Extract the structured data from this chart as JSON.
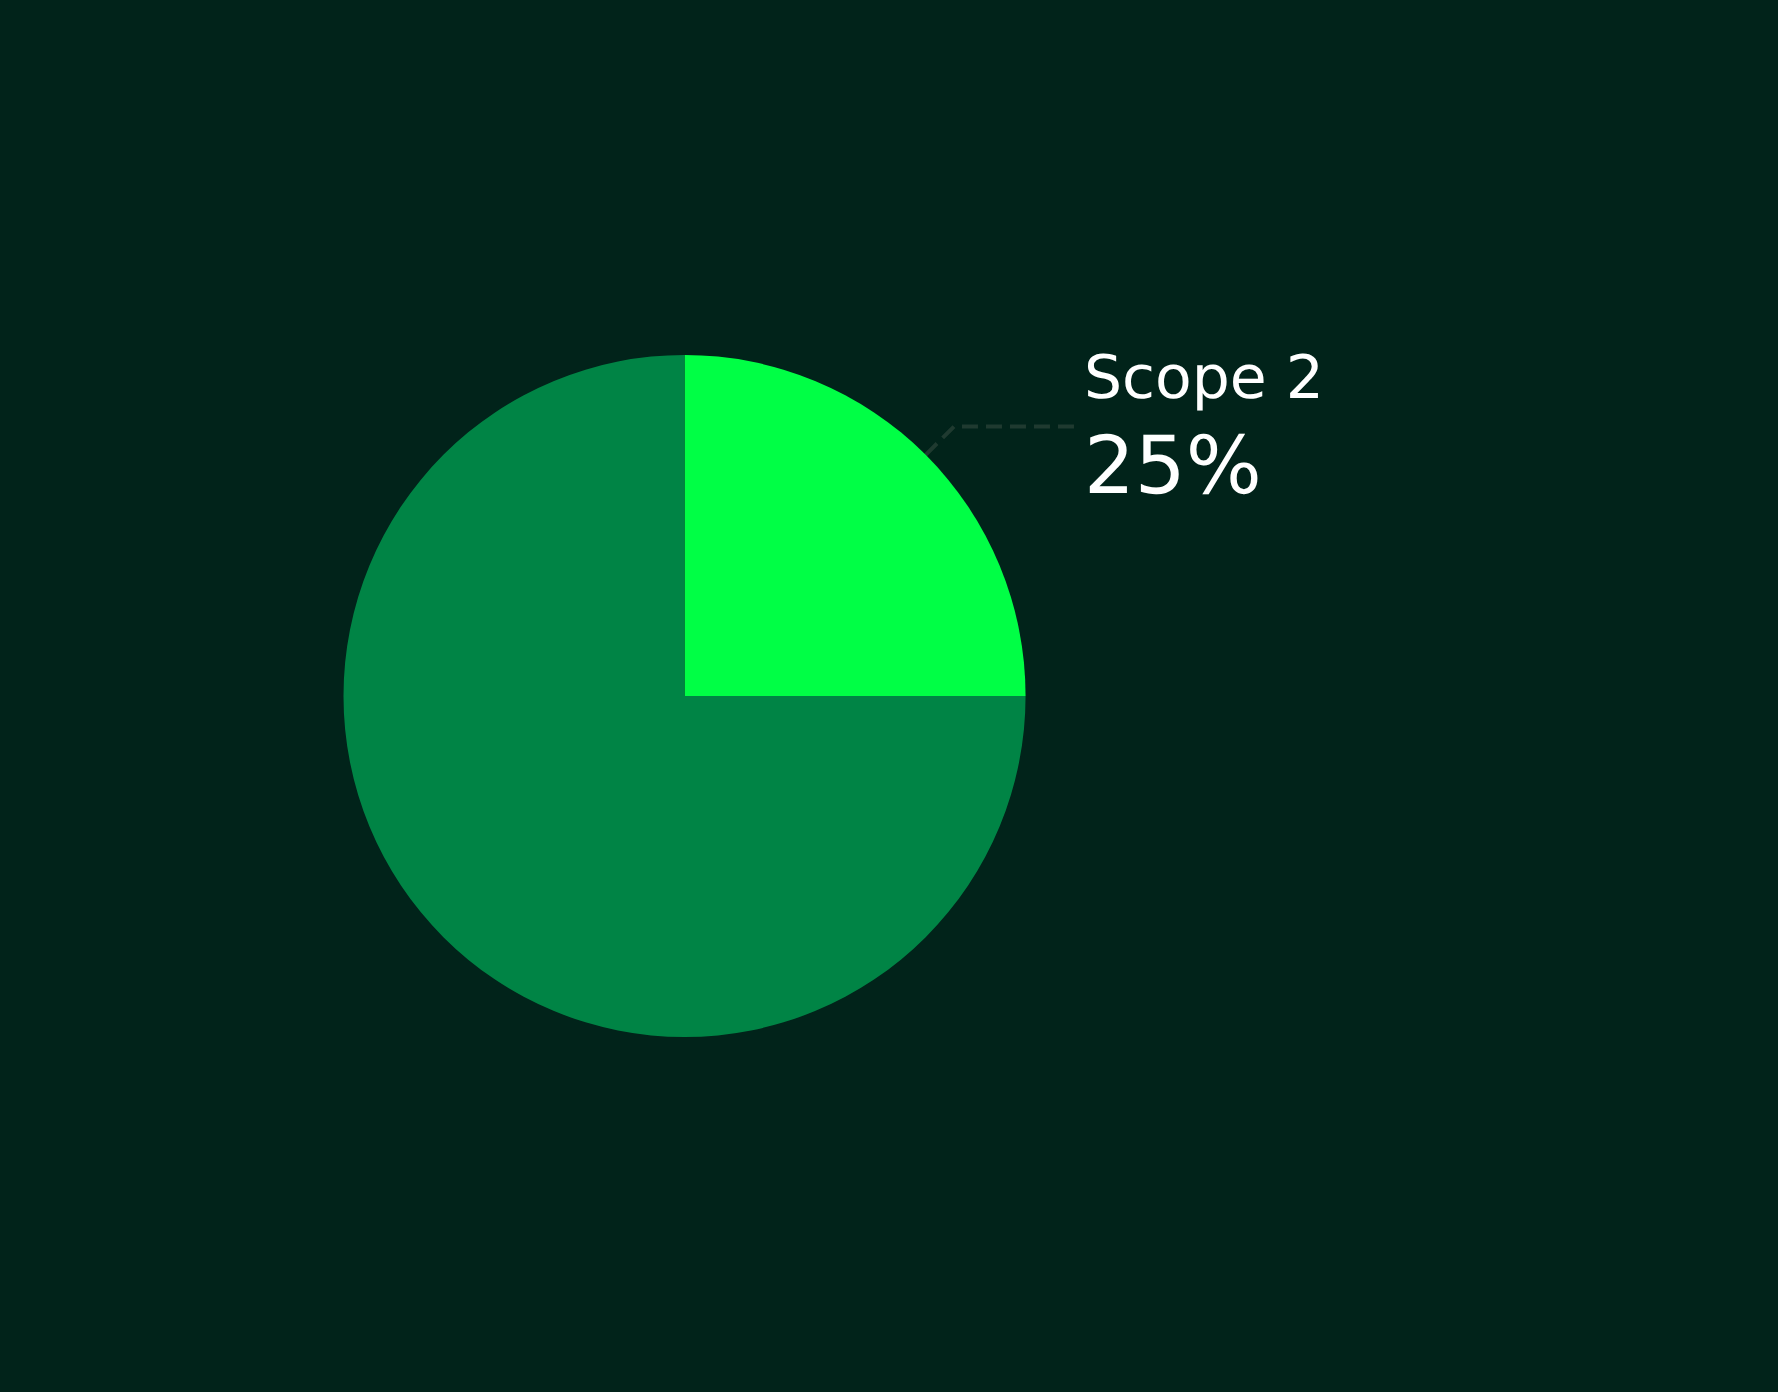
{
  "chart_data": {
    "type": "pie",
    "categories": [
      "Scope 2",
      null
    ],
    "values": [
      25,
      75
    ],
    "value_labels": [
      "25%",
      null
    ],
    "colors": [
      "#00ff45",
      "#008445"
    ],
    "legend": false
  }
}
